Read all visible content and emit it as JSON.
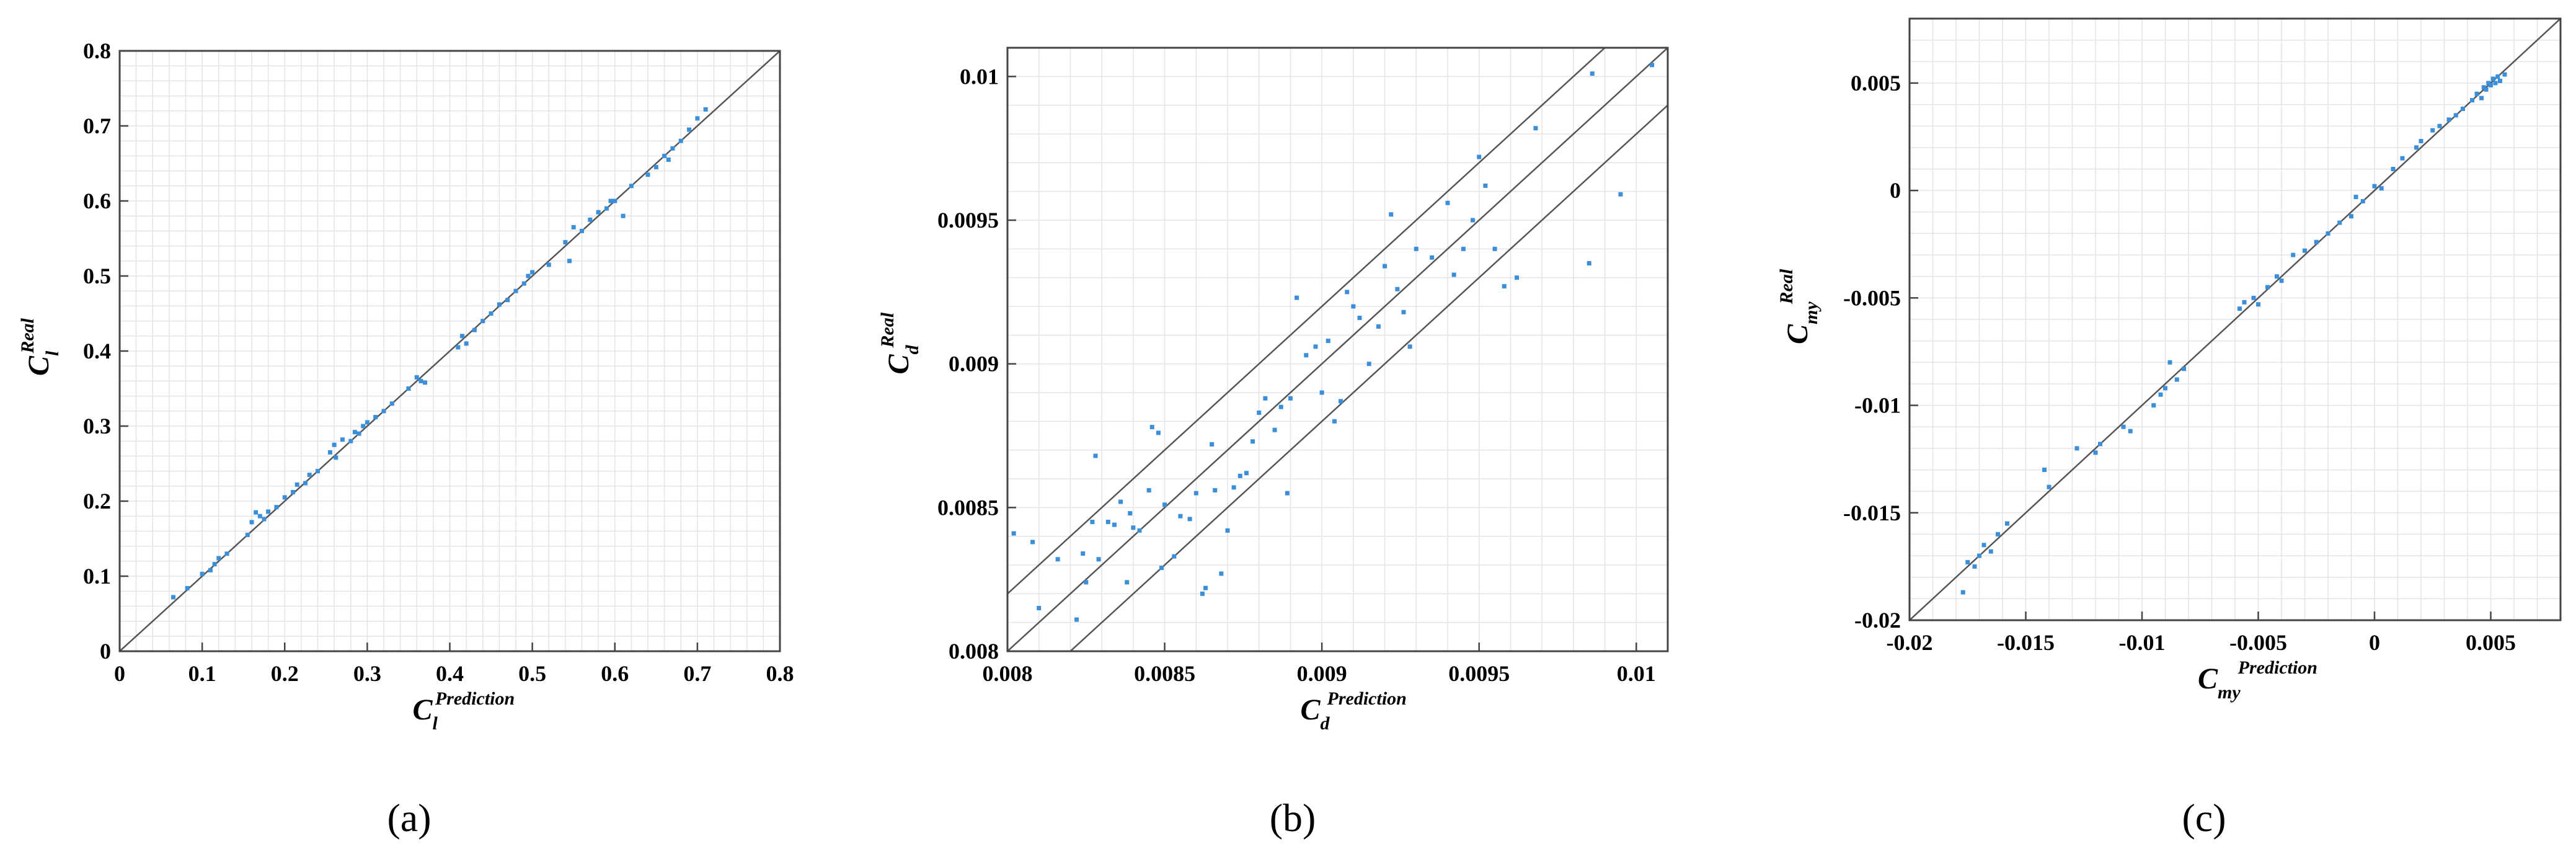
{
  "chart_data": [
    {
      "type": "scatter",
      "panel_label": "(a)",
      "xlabel_main": "C",
      "xlabel_sub": "l",
      "xlabel_sup": "Prediction",
      "ylabel_main": "C",
      "ylabel_sub": "l",
      "ylabel_sup": "Real",
      "xlim": [
        0,
        0.8
      ],
      "ylim": [
        0,
        0.8
      ],
      "xticks": [
        "0",
        "0.1",
        "0.2",
        "0.3",
        "0.4",
        "0.5",
        "0.6",
        "0.7",
        "0.8"
      ],
      "xtick_values": [
        0,
        0.1,
        0.2,
        0.3,
        0.4,
        0.5,
        0.6,
        0.7,
        0.8
      ],
      "yticks": [
        "0",
        "0.1",
        "0.2",
        "0.3",
        "0.4",
        "0.5",
        "0.6",
        "0.7",
        "0.8"
      ],
      "ytick_values": [
        0,
        0.1,
        0.2,
        0.3,
        0.4,
        0.5,
        0.6,
        0.7,
        0.8
      ],
      "grid": true,
      "reference_lines": [
        {
          "slope": 1,
          "intercept": 0
        }
      ],
      "points": {
        "x": [
          0.065,
          0.082,
          0.1,
          0.11,
          0.115,
          0.12,
          0.13,
          0.155,
          0.16,
          0.165,
          0.17,
          0.175,
          0.18,
          0.19,
          0.2,
          0.21,
          0.215,
          0.225,
          0.23,
          0.24,
          0.255,
          0.26,
          0.262,
          0.27,
          0.28,
          0.285,
          0.29,
          0.295,
          0.3,
          0.31,
          0.32,
          0.33,
          0.35,
          0.36,
          0.365,
          0.37,
          0.41,
          0.415,
          0.42,
          0.43,
          0.44,
          0.45,
          0.46,
          0.47,
          0.48,
          0.49,
          0.495,
          0.5,
          0.52,
          0.54,
          0.545,
          0.55,
          0.56,
          0.57,
          0.58,
          0.59,
          0.595,
          0.6,
          0.61,
          0.62,
          0.64,
          0.65,
          0.66,
          0.665,
          0.67,
          0.68,
          0.69,
          0.7,
          0.71
        ],
        "y": [
          0.072,
          0.084,
          0.103,
          0.108,
          0.116,
          0.124,
          0.13,
          0.155,
          0.172,
          0.185,
          0.18,
          0.176,
          0.186,
          0.192,
          0.205,
          0.212,
          0.222,
          0.224,
          0.235,
          0.24,
          0.265,
          0.275,
          0.258,
          0.282,
          0.28,
          0.292,
          0.29,
          0.3,
          0.305,
          0.312,
          0.32,
          0.33,
          0.35,
          0.365,
          0.36,
          0.358,
          0.405,
          0.42,
          0.41,
          0.428,
          0.44,
          0.45,
          0.462,
          0.468,
          0.48,
          0.49,
          0.5,
          0.505,
          0.515,
          0.545,
          0.52,
          0.565,
          0.56,
          0.575,
          0.585,
          0.59,
          0.6,
          0.6,
          0.58,
          0.62,
          0.635,
          0.645,
          0.66,
          0.655,
          0.67,
          0.68,
          0.695,
          0.71,
          0.722
        ]
      }
    },
    {
      "type": "scatter",
      "panel_label": "(b)",
      "xlabel_main": "C",
      "xlabel_sub": "d",
      "xlabel_sup": "Prediction",
      "ylabel_main": "C",
      "ylabel_sub": "d",
      "ylabel_sup": "Real",
      "xlim": [
        0.008,
        0.0101
      ],
      "ylim": [
        0.008,
        0.0101
      ],
      "xticks": [
        "0.008",
        "0.0085",
        "0.009",
        "0.0095",
        "0.01"
      ],
      "xtick_values": [
        0.008,
        0.0085,
        0.009,
        0.0095,
        0.01
      ],
      "yticks": [
        "0.008",
        "0.0085",
        "0.009",
        "0.0095",
        "0.01"
      ],
      "ytick_values": [
        0.008,
        0.0085,
        0.009,
        0.0095,
        0.01
      ],
      "grid": true,
      "reference_lines": [
        {
          "slope": 1,
          "intercept": 0.0002
        },
        {
          "slope": 1,
          "intercept": 0
        },
        {
          "slope": 1,
          "intercept": -0.0002
        }
      ],
      "points": {
        "x": [
          0.00802,
          0.00808,
          0.0081,
          0.00816,
          0.00822,
          0.00824,
          0.00825,
          0.00827,
          0.00828,
          0.00829,
          0.00832,
          0.00834,
          0.00836,
          0.00838,
          0.00839,
          0.0084,
          0.00842,
          0.00845,
          0.00846,
          0.00848,
          0.00849,
          0.0085,
          0.00853,
          0.00855,
          0.00858,
          0.0086,
          0.00862,
          0.00863,
          0.00865,
          0.00866,
          0.00868,
          0.0087,
          0.00872,
          0.00874,
          0.00876,
          0.00878,
          0.0088,
          0.00882,
          0.00885,
          0.00887,
          0.00889,
          0.0089,
          0.00892,
          0.00895,
          0.00898,
          0.009,
          0.00902,
          0.00904,
          0.00906,
          0.00908,
          0.0091,
          0.00912,
          0.00915,
          0.00918,
          0.0092,
          0.00922,
          0.00924,
          0.00926,
          0.00928,
          0.0093,
          0.00935,
          0.0094,
          0.00942,
          0.00945,
          0.00948,
          0.0095,
          0.00952,
          0.00955,
          0.00958,
          0.00962,
          0.00968,
          0.00985,
          0.00986,
          0.00995,
          0.01005
        ],
        "y": [
          0.00841,
          0.00838,
          0.00815,
          0.00832,
          0.00811,
          0.00834,
          0.00824,
          0.00845,
          0.00868,
          0.00832,
          0.00845,
          0.00844,
          0.00852,
          0.00824,
          0.00848,
          0.00843,
          0.00842,
          0.00856,
          0.00878,
          0.00876,
          0.00829,
          0.00851,
          0.00833,
          0.00847,
          0.00846,
          0.00855,
          0.0082,
          0.00822,
          0.00872,
          0.00856,
          0.00827,
          0.00842,
          0.00857,
          0.00861,
          0.00862,
          0.00873,
          0.00883,
          0.00888,
          0.00877,
          0.00885,
          0.00855,
          0.00888,
          0.00923,
          0.00903,
          0.00906,
          0.0089,
          0.00908,
          0.0088,
          0.00887,
          0.00925,
          0.0092,
          0.00916,
          0.009,
          0.00913,
          0.00934,
          0.00952,
          0.00926,
          0.00918,
          0.00906,
          0.0094,
          0.00937,
          0.00956,
          0.00931,
          0.0094,
          0.0095,
          0.00972,
          0.00962,
          0.0094,
          0.00927,
          0.0093,
          0.00982,
          0.00935,
          0.01001,
          0.00959,
          0.01004
        ]
      }
    },
    {
      "type": "scatter",
      "panel_label": "(c)",
      "xlabel_main": "C",
      "xlabel_sub": "my",
      "xlabel_sup": "Prediction",
      "ylabel_main": "C",
      "ylabel_sub": "my",
      "ylabel_sup": "Real",
      "xlim": [
        -0.02,
        0.008
      ],
      "ylim": [
        -0.02,
        0.008
      ],
      "xticks": [
        "-0.02",
        "-0.015",
        "-0.01",
        "-0.005",
        "0",
        "0.005"
      ],
      "xtick_values": [
        -0.02,
        -0.015,
        -0.01,
        -0.005,
        0,
        0.005
      ],
      "yticks": [
        "-0.02",
        "-0.015",
        "-0.01",
        "-0.005",
        "0",
        "0.005"
      ],
      "ytick_values": [
        -0.02,
        -0.015,
        -0.01,
        -0.005,
        0,
        0.005
      ],
      "grid": true,
      "reference_lines": [
        {
          "slope": 1,
          "intercept": 0
        }
      ],
      "points": {
        "x": [
          -0.0177,
          -0.0175,
          -0.0172,
          -0.017,
          -0.0168,
          -0.0165,
          -0.0162,
          -0.0158,
          -0.0142,
          -0.014,
          -0.0128,
          -0.012,
          -0.0118,
          -0.0108,
          -0.0105,
          -0.0095,
          -0.0092,
          -0.009,
          -0.0088,
          -0.0085,
          -0.0082,
          -0.0058,
          -0.0056,
          -0.0052,
          -0.005,
          -0.0046,
          -0.0042,
          -0.004,
          -0.0035,
          -0.003,
          -0.0025,
          -0.002,
          -0.0015,
          -0.001,
          -0.0008,
          -0.0005,
          0.0,
          0.0003,
          0.0008,
          0.0012,
          0.0018,
          0.002,
          0.0025,
          0.0028,
          0.0032,
          0.0035,
          0.0038,
          0.0042,
          0.0044,
          0.0046,
          0.0047,
          0.0048,
          0.0049,
          0.005,
          0.0051,
          0.0052,
          0.0053,
          0.0054,
          0.0056
        ],
        "y": [
          -0.0187,
          -0.0173,
          -0.0175,
          -0.017,
          -0.0165,
          -0.0168,
          -0.016,
          -0.0155,
          -0.013,
          -0.0138,
          -0.012,
          -0.0122,
          -0.0118,
          -0.011,
          -0.0112,
          -0.01,
          -0.0095,
          -0.0092,
          -0.008,
          -0.0088,
          -0.0083,
          -0.0055,
          -0.0052,
          -0.005,
          -0.0053,
          -0.0045,
          -0.004,
          -0.0042,
          -0.003,
          -0.0028,
          -0.0024,
          -0.002,
          -0.0015,
          -0.0012,
          -0.0003,
          -0.0005,
          0.0002,
          0.0001,
          0.001,
          0.0015,
          0.002,
          0.0023,
          0.0028,
          0.003,
          0.0033,
          0.0035,
          0.0038,
          0.0042,
          0.0045,
          0.0043,
          0.0048,
          0.0047,
          0.005,
          0.0049,
          0.0052,
          0.005,
          0.0053,
          0.0051,
          0.0054
        ]
      }
    }
  ],
  "colors": {
    "point": "#3b8fd9",
    "reference_line": "#555555",
    "frame": "#444444",
    "grid": "#e4e4e4",
    "text": "#000000"
  }
}
